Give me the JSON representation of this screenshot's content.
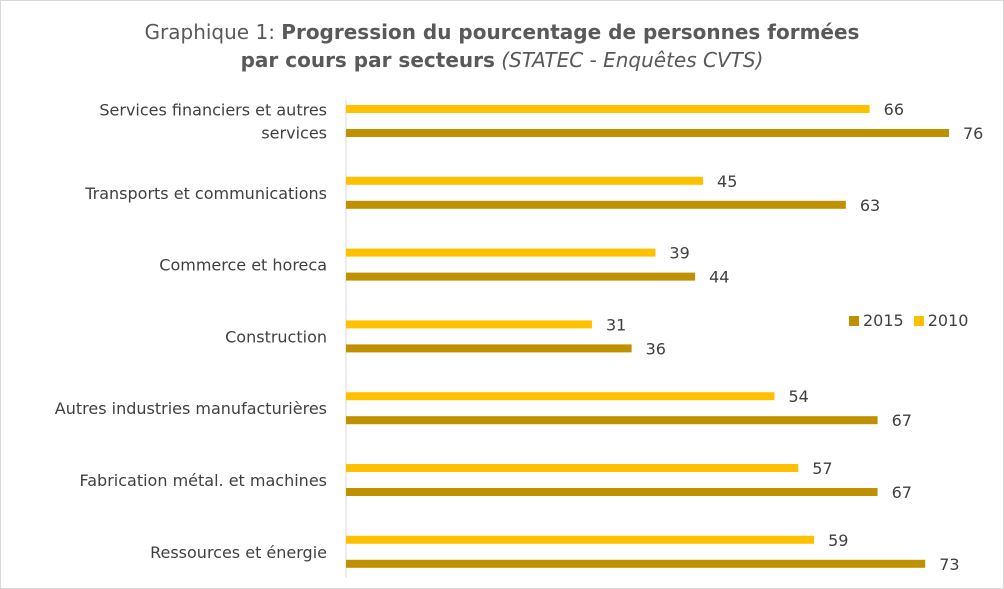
{
  "title": {
    "prefix": "Graphique 1: ",
    "bold_line1": "Progression du pourcentage de personnes formées",
    "bold_line2": "par cours par secteurs",
    "source": " (STATEC - Enquêtes CVTS)"
  },
  "legend": {
    "items": [
      {
        "label": "2015",
        "color": "#bf9000"
      },
      {
        "label": "2010",
        "color": "#ffc000"
      }
    ]
  },
  "chart_data": {
    "type": "bar",
    "orientation": "horizontal",
    "title": "Graphique 1: Progression du pourcentage de personnes formées par cours par secteurs (STATEC - Enquêtes CVTS)",
    "categories": [
      [
        "Services financiers et autres",
        "services"
      ],
      [
        "Transports et communications"
      ],
      [
        "Commerce et horeca"
      ],
      [
        "Construction"
      ],
      [
        "Autres industries manufacturières"
      ],
      [
        "Fabrication métal. et machines"
      ],
      [
        "Ressources et énergie"
      ]
    ],
    "series": [
      {
        "name": "2010",
        "color": "#ffc000",
        "values": [
          66,
          45,
          39,
          31,
          54,
          57,
          59
        ]
      },
      {
        "name": "2015",
        "color": "#bf9000",
        "values": [
          76,
          63,
          44,
          36,
          67,
          67,
          73
        ]
      }
    ],
    "xlim": [
      0,
      76
    ],
    "data_labels": true,
    "grid": false,
    "legend_position": "right"
  }
}
